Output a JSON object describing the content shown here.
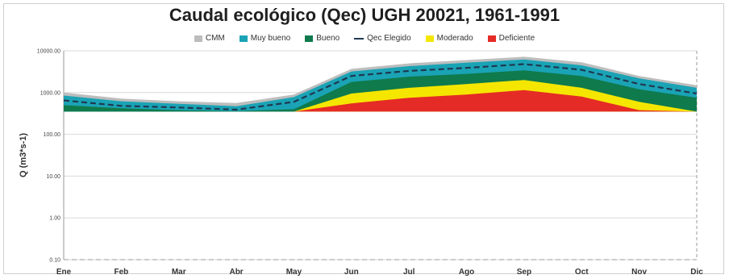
{
  "chart_data": {
    "type": "area",
    "title": "Caudal ecológico (Qec) UGH 20021, 1961-1991",
    "ylabel": "Q (m3*s-1)",
    "xlabel": "",
    "yscale": "log",
    "ylim": [
      0.1,
      10000
    ],
    "yticks": [
      "10000.00",
      "1000.00",
      "100.00",
      "10.00",
      "1.00",
      "0.10"
    ],
    "ytick_values": [
      10000,
      1000,
      100,
      10,
      1,
      0.1
    ],
    "categories": [
      "Ene",
      "Feb",
      "Mar",
      "Abr",
      "May",
      "Jun",
      "Jul",
      "Ago",
      "Sep",
      "Oct",
      "Nov",
      "Dic"
    ],
    "baseline": 350,
    "series": [
      {
        "name": "CMM",
        "color": "#bdbdbd",
        "kind": "band",
        "values": [
          1000,
          720,
          620,
          560,
          900,
          3700,
          5000,
          6000,
          7200,
          5300,
          2500,
          1500
        ]
      },
      {
        "name": "Muy bueno",
        "color": "#1aa3b5",
        "kind": "band",
        "values": [
          850,
          620,
          540,
          470,
          780,
          3200,
          4300,
          5200,
          6200,
          4500,
          2200,
          1300
        ]
      },
      {
        "name": "Bueno",
        "color": "#0f7a4c",
        "kind": "band",
        "values": [
          500,
          420,
          380,
          360,
          400,
          1800,
          2400,
          2800,
          3400,
          2500,
          1200,
          750
        ]
      },
      {
        "name": "Qec Elegido",
        "color": "#1f3850",
        "kind": "dashed",
        "values": [
          650,
          480,
          440,
          390,
          600,
          2500,
          3300,
          3900,
          4800,
          3500,
          1600,
          950
        ]
      },
      {
        "name": "Moderado",
        "color": "#f5e600",
        "kind": "band",
        "values": [
          350,
          350,
          350,
          350,
          350,
          950,
          1300,
          1600,
          2000,
          1300,
          600,
          350
        ]
      },
      {
        "name": "Deficiente",
        "color": "#e52b25",
        "kind": "band",
        "values": [
          350,
          350,
          350,
          350,
          350,
          550,
          750,
          900,
          1150,
          800,
          380,
          350
        ]
      }
    ],
    "grid": true,
    "legend_position": "top-center"
  }
}
